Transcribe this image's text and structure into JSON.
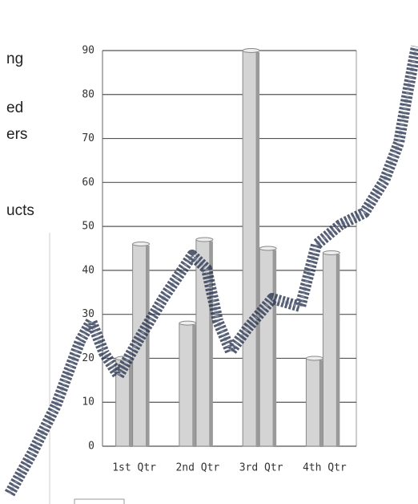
{
  "chart_data": {
    "type": "bar",
    "annotations": [
      "ng",
      "ed",
      "ers",
      "ucts"
    ],
    "categories": [
      "1st Qtr",
      "2nd Qtr",
      "3rd Qtr",
      "4th Qtr"
    ],
    "series": [
      {
        "color": "#d4d4d4",
        "values": [
          20,
          28,
          90,
          20
        ]
      },
      {
        "color": "#d4d4d4",
        "values": [
          46,
          47,
          45,
          44
        ]
      }
    ],
    "ylim": [
      0,
      90
    ],
    "yticks": [
      0,
      10,
      20,
      30,
      40,
      50,
      60,
      70,
      80,
      90
    ],
    "grid": true
  }
}
